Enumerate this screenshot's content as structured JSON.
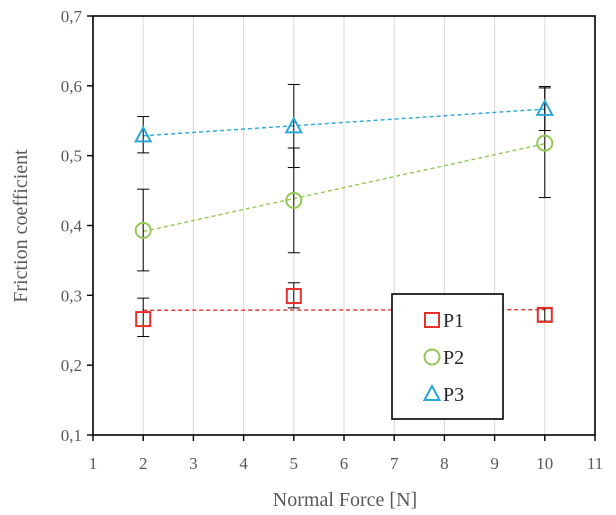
{
  "chart_data": {
    "type": "scatter",
    "title": "",
    "xlabel": "Normal Force [N]",
    "ylabel": "Friction coefficient",
    "xlim": [
      1,
      11
    ],
    "ylim": [
      0.1,
      0.7
    ],
    "x_ticks": [
      "1",
      "2",
      "3",
      "4",
      "5",
      "6",
      "7",
      "8",
      "9",
      "10",
      "11"
    ],
    "y_ticks": [
      "0,1",
      "0,2",
      "0,3",
      "0,4",
      "0,5",
      "0,6",
      "0,7"
    ],
    "grid": "vertical",
    "legend_position": "bottom-right",
    "trendlines": "linear, dashed",
    "series": [
      {
        "name": "P1",
        "marker": "square",
        "color": "#e8302a",
        "x": [
          2,
          5,
          10
        ],
        "y": [
          0.266,
          0.299,
          0.272
        ],
        "err_low": [
          0.241,
          0.282,
          0.263
        ],
        "err_high": [
          0.296,
          0.318,
          0.281
        ]
      },
      {
        "name": "P2",
        "marker": "circle",
        "color": "#92c853",
        "x": [
          2,
          5,
          10
        ],
        "y": [
          0.393,
          0.436,
          0.518
        ],
        "err_low": [
          0.335,
          0.361,
          0.44
        ],
        "err_high": [
          0.452,
          0.511,
          0.597
        ]
      },
      {
        "name": "P3",
        "marker": "triangle",
        "color": "#2aa6d9",
        "x": [
          2,
          5,
          10
        ],
        "y": [
          0.529,
          0.542,
          0.567
        ],
        "err_low": [
          0.504,
          0.483,
          0.536
        ],
        "err_high": [
          0.556,
          0.602,
          0.599
        ]
      }
    ]
  }
}
